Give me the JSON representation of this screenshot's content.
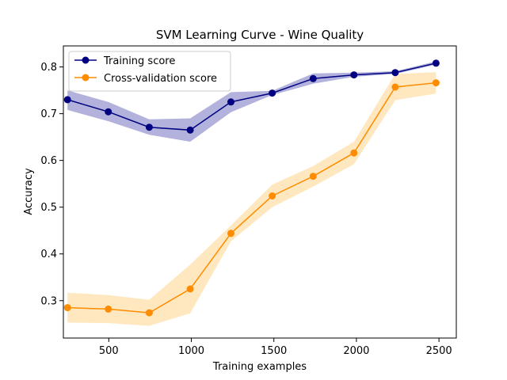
{
  "chart_data": {
    "type": "line",
    "title": "SVM Learning Curve - Wine Quality",
    "xlabel": "Training examples",
    "ylabel": "Accuracy",
    "xlim": [
      225,
      2605
    ],
    "ylim": [
      0.22,
      0.845
    ],
    "xticks": [
      500,
      1000,
      1500,
      2000,
      2500
    ],
    "yticks": [
      0.3,
      0.4,
      0.5,
      0.6,
      0.7,
      0.8
    ],
    "ytick_labels": [
      "0.3",
      "0.4",
      "0.5",
      "0.6",
      "0.7",
      "0.8"
    ],
    "legend_position": "top-left",
    "grid": false,
    "x": [
      250,
      497,
      745,
      993,
      1240,
      1490,
      1738,
      1985,
      2235,
      2482
    ],
    "series": [
      {
        "name": "Training score",
        "color": "#000080",
        "band_color": "#00008b",
        "values": [
          0.73,
          0.704,
          0.671,
          0.665,
          0.725,
          0.744,
          0.775,
          0.783,
          0.788,
          0.808
        ],
        "lower": [
          0.708,
          0.684,
          0.655,
          0.64,
          0.703,
          0.74,
          0.764,
          0.779,
          0.785,
          0.805
        ],
        "upper": [
          0.75,
          0.725,
          0.688,
          0.69,
          0.746,
          0.749,
          0.786,
          0.788,
          0.791,
          0.812
        ]
      },
      {
        "name": "Cross-validation score",
        "color": "#ff8c00",
        "band_color": "#ffa500",
        "values": [
          0.285,
          0.282,
          0.274,
          0.325,
          0.444,
          0.524,
          0.566,
          0.616,
          0.757,
          0.766
        ],
        "lower": [
          0.253,
          0.252,
          0.246,
          0.273,
          0.427,
          0.5,
          0.544,
          0.592,
          0.729,
          0.743
        ],
        "upper": [
          0.317,
          0.312,
          0.302,
          0.377,
          0.461,
          0.548,
          0.588,
          0.64,
          0.785,
          0.789
        ]
      }
    ]
  }
}
